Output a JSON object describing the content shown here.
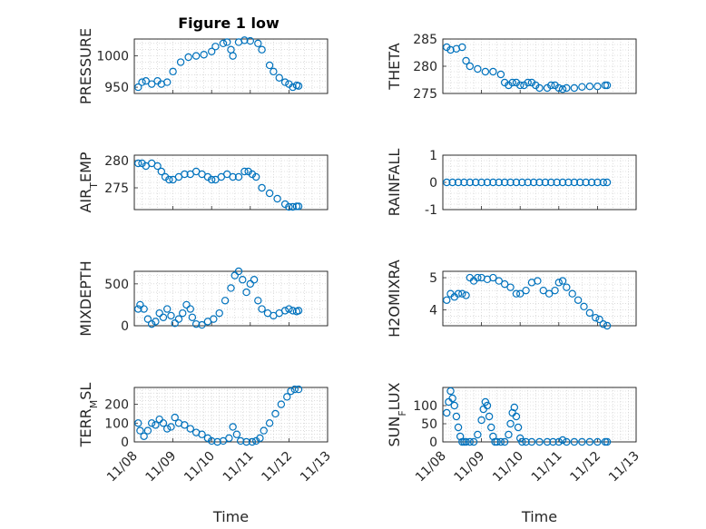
{
  "figure_title": "Figure 1 low",
  "colors": {
    "marker": "#0072BD",
    "axis": "#262626",
    "grid": "#c8c8c8"
  },
  "chart_data": [
    {
      "type": "scatter",
      "id": "pressure",
      "ylabel": "PRESSURE",
      "xlabel": "",
      "title": "Figure 1 low",
      "xlim": [
        0,
        5
      ],
      "ylim": [
        940,
        1027
      ],
      "yticks": [
        950,
        1000
      ],
      "xticks": [
        0,
        1,
        2,
        3,
        4,
        5
      ],
      "show_xticklabels": false,
      "grid": true,
      "series": [
        {
          "x": [
            0.1,
            0.2,
            0.3,
            0.45,
            0.6,
            0.7,
            0.85,
            1.0,
            1.2,
            1.4,
            1.6,
            1.8,
            2.0,
            2.1,
            2.3,
            2.4,
            2.5,
            2.55,
            2.7,
            2.85,
            3.0,
            3.2,
            3.3,
            3.5,
            3.6,
            3.75,
            3.9,
            4.0,
            4.1,
            4.2,
            4.25
          ],
          "y": [
            950,
            958,
            960,
            955,
            960,
            955,
            958,
            975,
            990,
            998,
            1000,
            1002,
            1007,
            1015,
            1020,
            1022,
            1010,
            1000,
            1022,
            1025,
            1024,
            1020,
            1010,
            985,
            975,
            965,
            958,
            955,
            950,
            953,
            952
          ]
        }
      ]
    },
    {
      "type": "scatter",
      "id": "theta",
      "ylabel": "THETA",
      "xlabel": "",
      "xlim": [
        0,
        5
      ],
      "ylim": [
        275,
        285
      ],
      "yticks": [
        275,
        280,
        285
      ],
      "xticks": [
        0,
        1,
        2,
        3,
        4,
        5
      ],
      "show_xticklabels": false,
      "grid": true,
      "series": [
        {
          "x": [
            0.1,
            0.2,
            0.35,
            0.5,
            0.6,
            0.7,
            0.9,
            1.1,
            1.3,
            1.5,
            1.6,
            1.7,
            1.8,
            1.9,
            2.0,
            2.1,
            2.2,
            2.3,
            2.4,
            2.5,
            2.7,
            2.8,
            2.9,
            3.0,
            3.1,
            3.2,
            3.4,
            3.6,
            3.8,
            4.0,
            4.2,
            4.25
          ],
          "y": [
            283.5,
            283,
            283.2,
            283.5,
            281,
            280,
            279.5,
            279,
            279,
            278.5,
            277,
            276.5,
            277,
            277,
            276.5,
            276.5,
            277,
            277,
            276.5,
            276,
            276,
            276.5,
            276.5,
            276,
            275.8,
            276,
            276,
            276.2,
            276.3,
            276.3,
            276.5,
            276.5
          ]
        }
      ]
    },
    {
      "type": "scatter",
      "id": "air_temp",
      "ylabel": "AIR_TEMP",
      "xlabel": "",
      "xlim": [
        0,
        5
      ],
      "ylim": [
        271,
        281
      ],
      "yticks": [
        275,
        280
      ],
      "xticks": [
        0,
        1,
        2,
        3,
        4,
        5
      ],
      "show_xticklabels": false,
      "grid": true,
      "series": [
        {
          "x": [
            0.1,
            0.2,
            0.3,
            0.45,
            0.6,
            0.7,
            0.8,
            0.9,
            1.0,
            1.15,
            1.3,
            1.45,
            1.6,
            1.75,
            1.9,
            2.0,
            2.1,
            2.25,
            2.4,
            2.55,
            2.7,
            2.85,
            2.95,
            3.05,
            3.15,
            3.3,
            3.5,
            3.7,
            3.9,
            4.0,
            4.1,
            4.2,
            4.25
          ],
          "y": [
            279.5,
            279.5,
            279,
            279.5,
            279,
            278,
            277,
            276.5,
            276.5,
            277,
            277.5,
            277.5,
            278,
            277.5,
            277,
            276.5,
            276.5,
            277,
            277.5,
            277,
            277,
            278,
            278,
            277.5,
            277,
            275,
            274,
            273,
            272,
            271.5,
            271.5,
            271.6,
            271.6
          ]
        }
      ]
    },
    {
      "type": "scatter",
      "id": "rainfall",
      "ylabel": "RAINFALL",
      "xlabel": "",
      "xlim": [
        0,
        5
      ],
      "ylim": [
        -1,
        1
      ],
      "yticks": [
        -1,
        0,
        1
      ],
      "xticks": [
        0,
        1,
        2,
        3,
        4,
        5
      ],
      "show_xticklabels": false,
      "grid": true,
      "series": [
        {
          "x": [
            0.1,
            0.25,
            0.4,
            0.55,
            0.7,
            0.85,
            1.0,
            1.15,
            1.3,
            1.45,
            1.6,
            1.75,
            1.9,
            2.05,
            2.2,
            2.35,
            2.5,
            2.65,
            2.8,
            2.95,
            3.1,
            3.25,
            3.4,
            3.55,
            3.7,
            3.85,
            4.0,
            4.15,
            4.25
          ],
          "y": [
            0,
            0,
            0,
            0,
            0,
            0,
            0,
            0,
            0,
            0,
            0,
            0,
            0,
            0,
            0,
            0,
            0,
            0,
            0,
            0,
            0,
            0,
            0,
            0,
            0,
            0,
            0,
            0,
            0
          ]
        }
      ]
    },
    {
      "type": "scatter",
      "id": "mixdepth",
      "ylabel": "MIXDEPTH",
      "xlabel": "",
      "xlim": [
        0,
        5
      ],
      "ylim": [
        0,
        650
      ],
      "yticks": [
        0,
        500
      ],
      "xticks": [
        0,
        1,
        2,
        3,
        4,
        5
      ],
      "show_xticklabels": false,
      "grid": true,
      "series": [
        {
          "x": [
            0.1,
            0.15,
            0.25,
            0.35,
            0.45,
            0.55,
            0.65,
            0.75,
            0.85,
            0.95,
            1.05,
            1.15,
            1.25,
            1.35,
            1.45,
            1.5,
            1.6,
            1.75,
            1.9,
            2.05,
            2.2,
            2.35,
            2.5,
            2.6,
            2.7,
            2.8,
            2.9,
            3.0,
            3.1,
            3.2,
            3.3,
            3.45,
            3.6,
            3.75,
            3.9,
            4.0,
            4.1,
            4.2,
            4.25
          ],
          "y": [
            200,
            250,
            200,
            80,
            20,
            50,
            150,
            100,
            200,
            120,
            30,
            80,
            150,
            250,
            200,
            100,
            20,
            10,
            50,
            80,
            150,
            300,
            450,
            600,
            650,
            550,
            400,
            500,
            550,
            300,
            200,
            150,
            120,
            150,
            180,
            200,
            180,
            170,
            180
          ]
        }
      ]
    },
    {
      "type": "scatter",
      "id": "h2omixra",
      "ylabel": "H2OMIXRA",
      "xlabel": "",
      "xlim": [
        0,
        5
      ],
      "ylim": [
        3.5,
        5.2
      ],
      "yticks": [
        4,
        5
      ],
      "xticks": [
        0,
        1,
        2,
        3,
        4,
        5
      ],
      "show_xticklabels": false,
      "grid": true,
      "series": [
        {
          "x": [
            0.1,
            0.2,
            0.3,
            0.4,
            0.5,
            0.6,
            0.7,
            0.8,
            0.9,
            1.0,
            1.15,
            1.3,
            1.45,
            1.6,
            1.75,
            1.9,
            2.0,
            2.15,
            2.3,
            2.45,
            2.6,
            2.75,
            2.9,
            3.0,
            3.1,
            3.2,
            3.35,
            3.5,
            3.65,
            3.8,
            3.95,
            4.05,
            4.15,
            4.25
          ],
          "y": [
            4.3,
            4.5,
            4.4,
            4.5,
            4.5,
            4.45,
            5.0,
            4.9,
            5.0,
            5.0,
            4.95,
            5.0,
            4.9,
            4.8,
            4.7,
            4.5,
            4.5,
            4.6,
            4.85,
            4.9,
            4.6,
            4.5,
            4.6,
            4.85,
            4.9,
            4.7,
            4.5,
            4.3,
            4.1,
            3.9,
            3.75,
            3.7,
            3.55,
            3.5
          ]
        }
      ]
    },
    {
      "type": "scatter",
      "id": "terr_msl",
      "ylabel": "TERR_MSL",
      "xlabel": "Time",
      "xlim": [
        0,
        5
      ],
      "ylim": [
        0,
        290
      ],
      "yticks": [
        0,
        100,
        200
      ],
      "xticks": [
        0,
        1,
        2,
        3,
        4,
        5
      ],
      "xticklabels": [
        "11/08",
        "11/09",
        "11/10",
        "11/11",
        "11/12",
        "11/13"
      ],
      "show_xticklabels": true,
      "grid": true,
      "series": [
        {
          "x": [
            0.1,
            0.15,
            0.25,
            0.35,
            0.45,
            0.55,
            0.65,
            0.75,
            0.85,
            0.95,
            1.05,
            1.15,
            1.3,
            1.45,
            1.6,
            1.75,
            1.9,
            2.0,
            2.15,
            2.3,
            2.45,
            2.55,
            2.65,
            2.75,
            2.9,
            3.05,
            3.15,
            3.25,
            3.35,
            3.5,
            3.65,
            3.8,
            3.95,
            4.05,
            4.15,
            4.25
          ],
          "y": [
            100,
            60,
            30,
            60,
            100,
            90,
            120,
            100,
            70,
            80,
            130,
            100,
            90,
            70,
            50,
            40,
            20,
            5,
            0,
            5,
            20,
            80,
            40,
            5,
            0,
            0,
            5,
            20,
            60,
            100,
            150,
            200,
            240,
            270,
            280,
            280
          ]
        }
      ]
    },
    {
      "type": "scatter",
      "id": "sun_flux",
      "ylabel": "SUN_FLUX",
      "xlabel": "Time",
      "xlim": [
        0,
        5
      ],
      "ylim": [
        0,
        150
      ],
      "yticks": [
        0,
        50,
        100
      ],
      "xticks": [
        0,
        1,
        2,
        3,
        4,
        5
      ],
      "xticklabels": [
        "11/08",
        "11/09",
        "11/10",
        "11/11",
        "11/12",
        "11/13"
      ],
      "show_xticklabels": true,
      "grid": true,
      "series": [
        {
          "x": [
            0.1,
            0.15,
            0.2,
            0.25,
            0.3,
            0.35,
            0.4,
            0.45,
            0.5,
            0.55,
            0.6,
            0.7,
            0.8,
            0.9,
            1.0,
            1.05,
            1.1,
            1.15,
            1.2,
            1.25,
            1.3,
            1.35,
            1.4,
            1.5,
            1.6,
            1.7,
            1.75,
            1.8,
            1.85,
            1.9,
            1.95,
            2.0,
            2.05,
            2.15,
            2.3,
            2.5,
            2.7,
            2.85,
            3.0,
            3.1,
            3.2,
            3.4,
            3.6,
            3.8,
            4.0,
            4.2,
            4.25
          ],
          "y": [
            80,
            110,
            140,
            120,
            100,
            70,
            40,
            15,
            0,
            0,
            0,
            0,
            0,
            20,
            60,
            90,
            110,
            100,
            70,
            40,
            15,
            0,
            0,
            0,
            0,
            20,
            50,
            80,
            95,
            70,
            40,
            10,
            0,
            0,
            0,
            0,
            0,
            0,
            0,
            5,
            0,
            0,
            0,
            0,
            0,
            0,
            0
          ]
        }
      ]
    }
  ]
}
